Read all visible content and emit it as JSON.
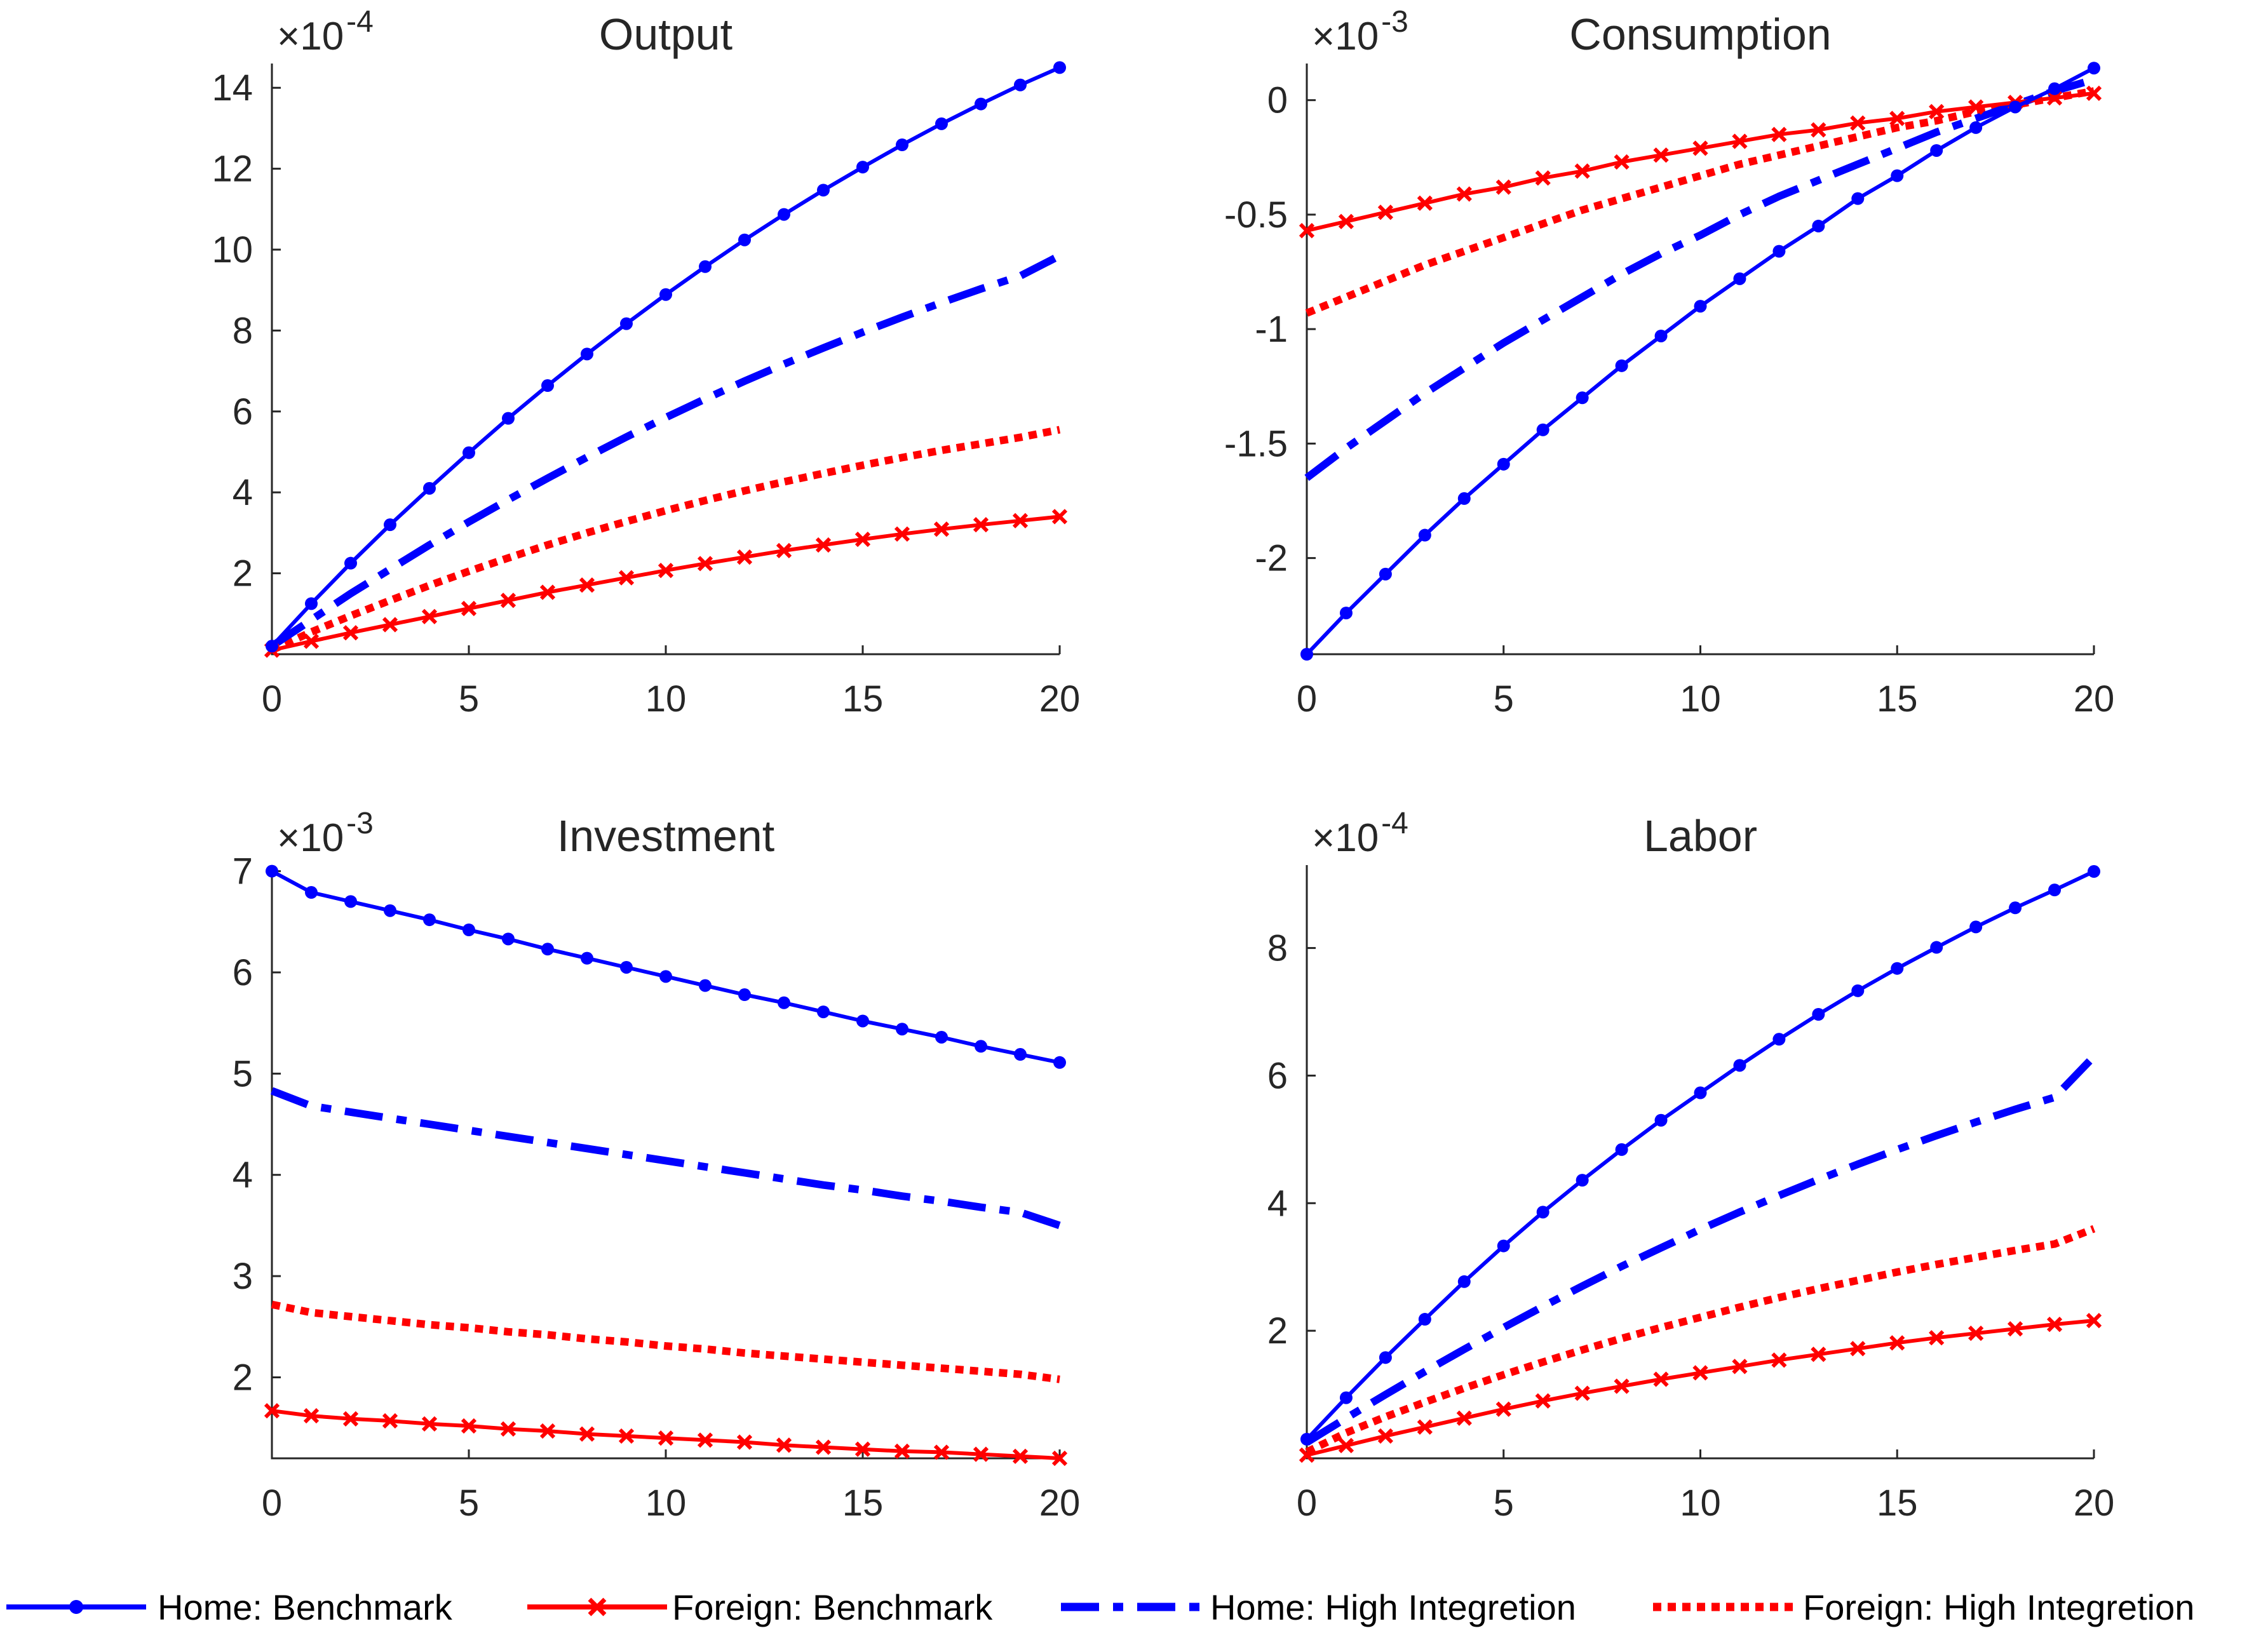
{
  "colors": {
    "home": "#0000ff",
    "foreign": "#ff0000",
    "axis": "#262626"
  },
  "legend": [
    {
      "key": "home_benchmark",
      "label": "Home: Benchmark",
      "color": "#0000ff",
      "style": "solid",
      "marker": "dot"
    },
    {
      "key": "foreign_benchmark",
      "label": "Foreign: Benchmark",
      "color": "#ff0000",
      "style": "solid",
      "marker": "x"
    },
    {
      "key": "home_high",
      "label": "Home: High Integretion",
      "color": "#0000ff",
      "style": "dashdot",
      "marker": "none"
    },
    {
      "key": "foreign_high",
      "label": "Foreign: High Integretion",
      "color": "#ff0000",
      "style": "dotted",
      "marker": "none"
    }
  ],
  "chart_data": [
    {
      "type": "line",
      "title": "Output",
      "exponent_prefix": "×10",
      "exponent": "-4",
      "x": [
        0,
        1,
        2,
        3,
        4,
        5,
        6,
        7,
        8,
        9,
        10,
        11,
        12,
        13,
        14,
        15,
        16,
        17,
        18,
        19,
        20
      ],
      "xlim": [
        0,
        20
      ],
      "xticks": [
        0,
        5,
        10,
        15,
        20
      ],
      "ylim": [
        0,
        14.6
      ],
      "yticks": [
        2,
        4,
        6,
        8,
        10,
        12,
        14
      ],
      "series": [
        {
          "key": "home_benchmark",
          "name": "Home: Benchmark",
          "values": [
            0.2,
            1.25,
            2.25,
            3.2,
            4.1,
            4.98,
            5.83,
            6.64,
            7.42,
            8.17,
            8.89,
            9.58,
            10.24,
            10.87,
            11.47,
            12.04,
            12.59,
            13.11,
            13.6,
            14.07,
            14.5
          ]
        },
        {
          "key": "foreign_benchmark",
          "name": "Foreign: Benchmark",
          "values": [
            0.1,
            0.32,
            0.53,
            0.73,
            0.93,
            1.13,
            1.33,
            1.53,
            1.71,
            1.89,
            2.07,
            2.24,
            2.4,
            2.56,
            2.7,
            2.84,
            2.97,
            3.09,
            3.2,
            3.3,
            3.4
          ]
        },
        {
          "key": "home_high",
          "name": "Home: High Integretion",
          "values": [
            0.2,
            0.85,
            1.5,
            2.1,
            2.7,
            3.27,
            3.82,
            4.35,
            4.87,
            5.37,
            5.85,
            6.31,
            6.75,
            7.17,
            7.57,
            7.96,
            8.33,
            8.69,
            9.03,
            9.35,
            9.85
          ]
        },
        {
          "key": "foreign_high",
          "name": "Foreign: High Integretion",
          "values": [
            0.1,
            0.55,
            0.95,
            1.33,
            1.7,
            2.05,
            2.38,
            2.7,
            3.0,
            3.28,
            3.55,
            3.8,
            4.04,
            4.26,
            4.47,
            4.67,
            4.86,
            5.04,
            5.2,
            5.36,
            5.55
          ]
        }
      ]
    },
    {
      "type": "line",
      "title": "Consumption",
      "exponent_prefix": "×10",
      "exponent": "-3",
      "x": [
        0,
        1,
        2,
        3,
        4,
        5,
        6,
        7,
        8,
        9,
        10,
        11,
        12,
        13,
        14,
        15,
        16,
        17,
        18,
        19,
        20
      ],
      "xlim": [
        0,
        20
      ],
      "xticks": [
        0,
        5,
        10,
        15,
        20
      ],
      "ylim": [
        -2.42,
        0.16
      ],
      "yticks": [
        -2,
        -1.5,
        -1,
        -0.5,
        0
      ],
      "ytick_labels": [
        "-2",
        "-1.5",
        "-1",
        "-0.5",
        "0"
      ],
      "series": [
        {
          "key": "home_benchmark",
          "name": "Home: Benchmark",
          "values": [
            -2.42,
            -2.24,
            -2.07,
            -1.9,
            -1.74,
            -1.59,
            -1.44,
            -1.3,
            -1.16,
            -1.03,
            -0.9,
            -0.78,
            -0.66,
            -0.55,
            -0.43,
            -0.33,
            -0.22,
            -0.12,
            -0.03,
            0.05,
            0.14
          ]
        },
        {
          "key": "foreign_benchmark",
          "name": "Foreign: Benchmark",
          "values": [
            -0.57,
            -0.53,
            -0.49,
            -0.45,
            -0.41,
            -0.38,
            -0.34,
            -0.31,
            -0.27,
            -0.24,
            -0.21,
            -0.18,
            -0.15,
            -0.13,
            -0.1,
            -0.08,
            -0.05,
            -0.03,
            -0.01,
            0.01,
            0.03
          ]
        },
        {
          "key": "home_high",
          "name": "Home: High Integretion",
          "values": [
            -1.65,
            -1.52,
            -1.4,
            -1.28,
            -1.17,
            -1.06,
            -0.96,
            -0.86,
            -0.76,
            -0.67,
            -0.59,
            -0.5,
            -0.42,
            -0.35,
            -0.28,
            -0.21,
            -0.14,
            -0.08,
            -0.02,
            0.04,
            0.09
          ]
        },
        {
          "key": "foreign_high",
          "name": "Foreign: High Integretion",
          "values": [
            -0.93,
            -0.86,
            -0.79,
            -0.72,
            -0.66,
            -0.6,
            -0.54,
            -0.48,
            -0.43,
            -0.38,
            -0.33,
            -0.28,
            -0.24,
            -0.2,
            -0.16,
            -0.12,
            -0.09,
            -0.05,
            -0.02,
            0.01,
            0.04
          ]
        }
      ]
    },
    {
      "type": "line",
      "title": "Investment",
      "exponent_prefix": "×10",
      "exponent": "-3",
      "x": [
        0,
        1,
        2,
        3,
        4,
        5,
        6,
        7,
        8,
        9,
        10,
        11,
        12,
        13,
        14,
        15,
        16,
        17,
        18,
        19,
        20
      ],
      "xlim": [
        0,
        20
      ],
      "xticks": [
        0,
        5,
        10,
        15,
        20
      ],
      "ylim": [
        1.2,
        7.06
      ],
      "yticks": [
        2,
        3,
        4,
        5,
        6,
        7
      ],
      "series": [
        {
          "key": "home_benchmark",
          "name": "Home: Benchmark",
          "values": [
            7.0,
            6.79,
            6.7,
            6.61,
            6.52,
            6.42,
            6.33,
            6.23,
            6.14,
            6.05,
            5.96,
            5.87,
            5.78,
            5.7,
            5.61,
            5.52,
            5.44,
            5.36,
            5.27,
            5.19,
            5.11
          ]
        },
        {
          "key": "foreign_benchmark",
          "name": "Foreign: Benchmark",
          "values": [
            1.67,
            1.62,
            1.59,
            1.57,
            1.54,
            1.52,
            1.49,
            1.47,
            1.44,
            1.42,
            1.4,
            1.38,
            1.36,
            1.33,
            1.31,
            1.29,
            1.27,
            1.26,
            1.24,
            1.22,
            1.2
          ]
        },
        {
          "key": "home_high",
          "name": "Home: High Integretion",
          "values": [
            4.83,
            4.68,
            4.62,
            4.56,
            4.5,
            4.44,
            4.38,
            4.32,
            4.26,
            4.2,
            4.14,
            4.08,
            4.02,
            3.96,
            3.9,
            3.85,
            3.79,
            3.74,
            3.68,
            3.63,
            3.5
          ]
        },
        {
          "key": "foreign_high",
          "name": "Foreign: High Integretion",
          "values": [
            2.72,
            2.64,
            2.6,
            2.56,
            2.52,
            2.49,
            2.45,
            2.42,
            2.38,
            2.35,
            2.31,
            2.28,
            2.24,
            2.21,
            2.18,
            2.15,
            2.12,
            2.09,
            2.06,
            2.03,
            1.98
          ]
        }
      ]
    },
    {
      "type": "line",
      "title": "Labor",
      "exponent_prefix": "×10",
      "exponent": "-4",
      "x": [
        0,
        1,
        2,
        3,
        4,
        5,
        6,
        7,
        8,
        9,
        10,
        11,
        12,
        13,
        14,
        15,
        16,
        17,
        18,
        19,
        20
      ],
      "xlim": [
        0,
        20
      ],
      "xticks": [
        0,
        5,
        10,
        15,
        20
      ],
      "ylim": [
        0,
        9.3
      ],
      "yticks": [
        2,
        4,
        6,
        8
      ],
      "series": [
        {
          "key": "home_benchmark",
          "name": "Home: Benchmark",
          "values": [
            0.3,
            0.95,
            1.58,
            2.18,
            2.77,
            3.33,
            3.86,
            4.36,
            4.84,
            5.3,
            5.73,
            6.16,
            6.57,
            6.96,
            7.33,
            7.68,
            8.01,
            8.33,
            8.63,
            8.91,
            9.2
          ]
        },
        {
          "key": "foreign_benchmark",
          "name": "Foreign: Benchmark",
          "values": [
            0.05,
            0.2,
            0.35,
            0.49,
            0.63,
            0.77,
            0.9,
            1.02,
            1.13,
            1.24,
            1.34,
            1.44,
            1.54,
            1.63,
            1.72,
            1.81,
            1.89,
            1.96,
            2.03,
            2.1,
            2.16
          ]
        },
        {
          "key": "home_high",
          "name": "Home: High Integretion",
          "values": [
            0.25,
            0.63,
            1.0,
            1.36,
            1.71,
            2.05,
            2.38,
            2.7,
            3.01,
            3.3,
            3.59,
            3.86,
            4.12,
            4.37,
            4.61,
            4.84,
            5.06,
            5.27,
            5.47,
            5.66,
            6.3
          ]
        },
        {
          "key": "foreign_high",
          "name": "Foreign: High Integretion",
          "values": [
            0.1,
            0.4,
            0.65,
            0.88,
            1.1,
            1.31,
            1.51,
            1.7,
            1.88,
            2.05,
            2.21,
            2.37,
            2.52,
            2.66,
            2.79,
            2.92,
            3.04,
            3.15,
            3.26,
            3.36,
            3.6
          ]
        }
      ]
    }
  ]
}
